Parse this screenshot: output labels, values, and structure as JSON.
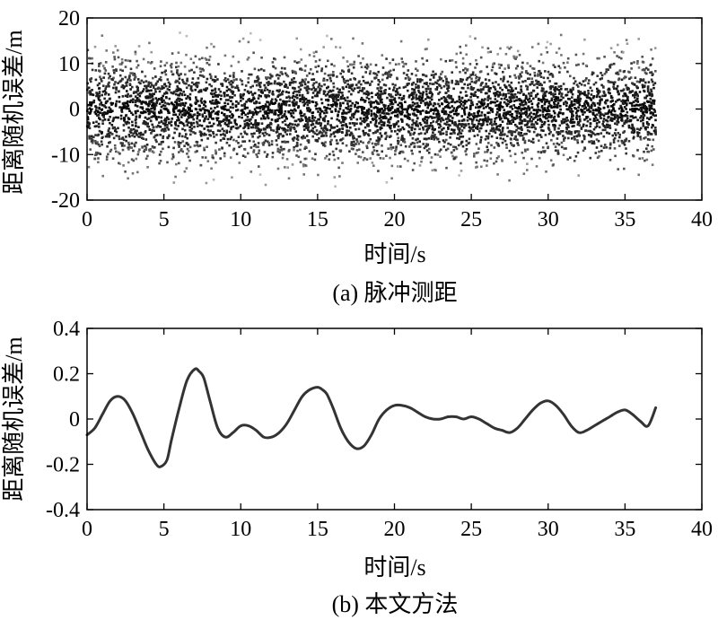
{
  "chart_data": [
    {
      "type": "scatter",
      "panel": "a",
      "caption": "(a) 脉冲测距",
      "xlabel": "时间/s",
      "ylabel": "距离随机误差/m",
      "xlim": [
        0,
        40
      ],
      "ylim": [
        -20,
        20
      ],
      "xticks": [
        0,
        5,
        10,
        15,
        20,
        25,
        30,
        35,
        40
      ],
      "yticks": [
        -20,
        -10,
        0,
        10,
        20
      ],
      "x_range": [
        0,
        37
      ],
      "noise_std": [
        6,
        5
      ],
      "max_abs_error": 17,
      "point_count": 5200,
      "grid": false,
      "colors": {
        "points": "#000000",
        "axes": "#000000"
      }
    },
    {
      "type": "line",
      "panel": "b",
      "caption": "(b) 本文方法",
      "xlabel": "时间/s",
      "ylabel": "距离随机误差/m",
      "xlim": [
        0,
        40
      ],
      "ylim": [
        -0.4,
        0.4
      ],
      "xticks": [
        0,
        5,
        10,
        15,
        20,
        25,
        30,
        35,
        40
      ],
      "yticks": [
        -0.4,
        -0.2,
        0,
        0.2,
        0.4
      ],
      "grid": false,
      "series": [
        {
          "x": [
            0,
            0.5,
            1,
            1.5,
            2,
            2.5,
            3,
            3.5,
            4,
            4.5,
            4.8,
            5.2,
            5.5,
            6,
            6.5,
            7,
            7.3,
            7.6,
            8,
            8.5,
            9,
            9.5,
            10,
            10.5,
            11,
            11.5,
            12,
            12.5,
            13,
            13.5,
            14,
            14.5,
            15,
            15.3,
            15.6,
            16,
            16.5,
            17,
            17.5,
            18,
            18.5,
            19,
            19.5,
            20,
            20.5,
            21,
            21.5,
            22,
            22.5,
            23,
            23.5,
            24,
            24.5,
            25,
            25.5,
            26,
            26.5,
            27,
            27.5,
            28,
            28.5,
            29,
            29.5,
            30,
            30.5,
            31,
            31.5,
            32,
            32.5,
            33,
            33.5,
            34,
            34.5,
            35,
            35.5,
            36,
            36.5,
            37
          ],
          "y": [
            -0.07,
            -0.04,
            0.02,
            0.08,
            0.1,
            0.08,
            0.02,
            -0.06,
            -0.14,
            -0.2,
            -0.21,
            -0.18,
            -0.09,
            0.05,
            0.17,
            0.22,
            0.21,
            0.18,
            0.08,
            -0.04,
            -0.08,
            -0.06,
            -0.03,
            -0.03,
            -0.05,
            -0.08,
            -0.08,
            -0.06,
            -0.02,
            0.04,
            0.1,
            0.13,
            0.14,
            0.13,
            0.11,
            0.05,
            -0.04,
            -0.1,
            -0.13,
            -0.12,
            -0.07,
            0.0,
            0.04,
            0.06,
            0.06,
            0.05,
            0.03,
            0.01,
            0.0,
            0.0,
            0.01,
            0.01,
            0.0,
            0.01,
            0.0,
            -0.02,
            -0.04,
            -0.05,
            -0.06,
            -0.04,
            0.0,
            0.04,
            0.07,
            0.08,
            0.06,
            0.02,
            -0.03,
            -0.06,
            -0.05,
            -0.03,
            -0.01,
            0.01,
            0.03,
            0.04,
            0.02,
            -0.01,
            -0.03,
            0.05
          ]
        }
      ],
      "colors": {
        "line": "#333333",
        "axes": "#000000"
      }
    }
  ]
}
